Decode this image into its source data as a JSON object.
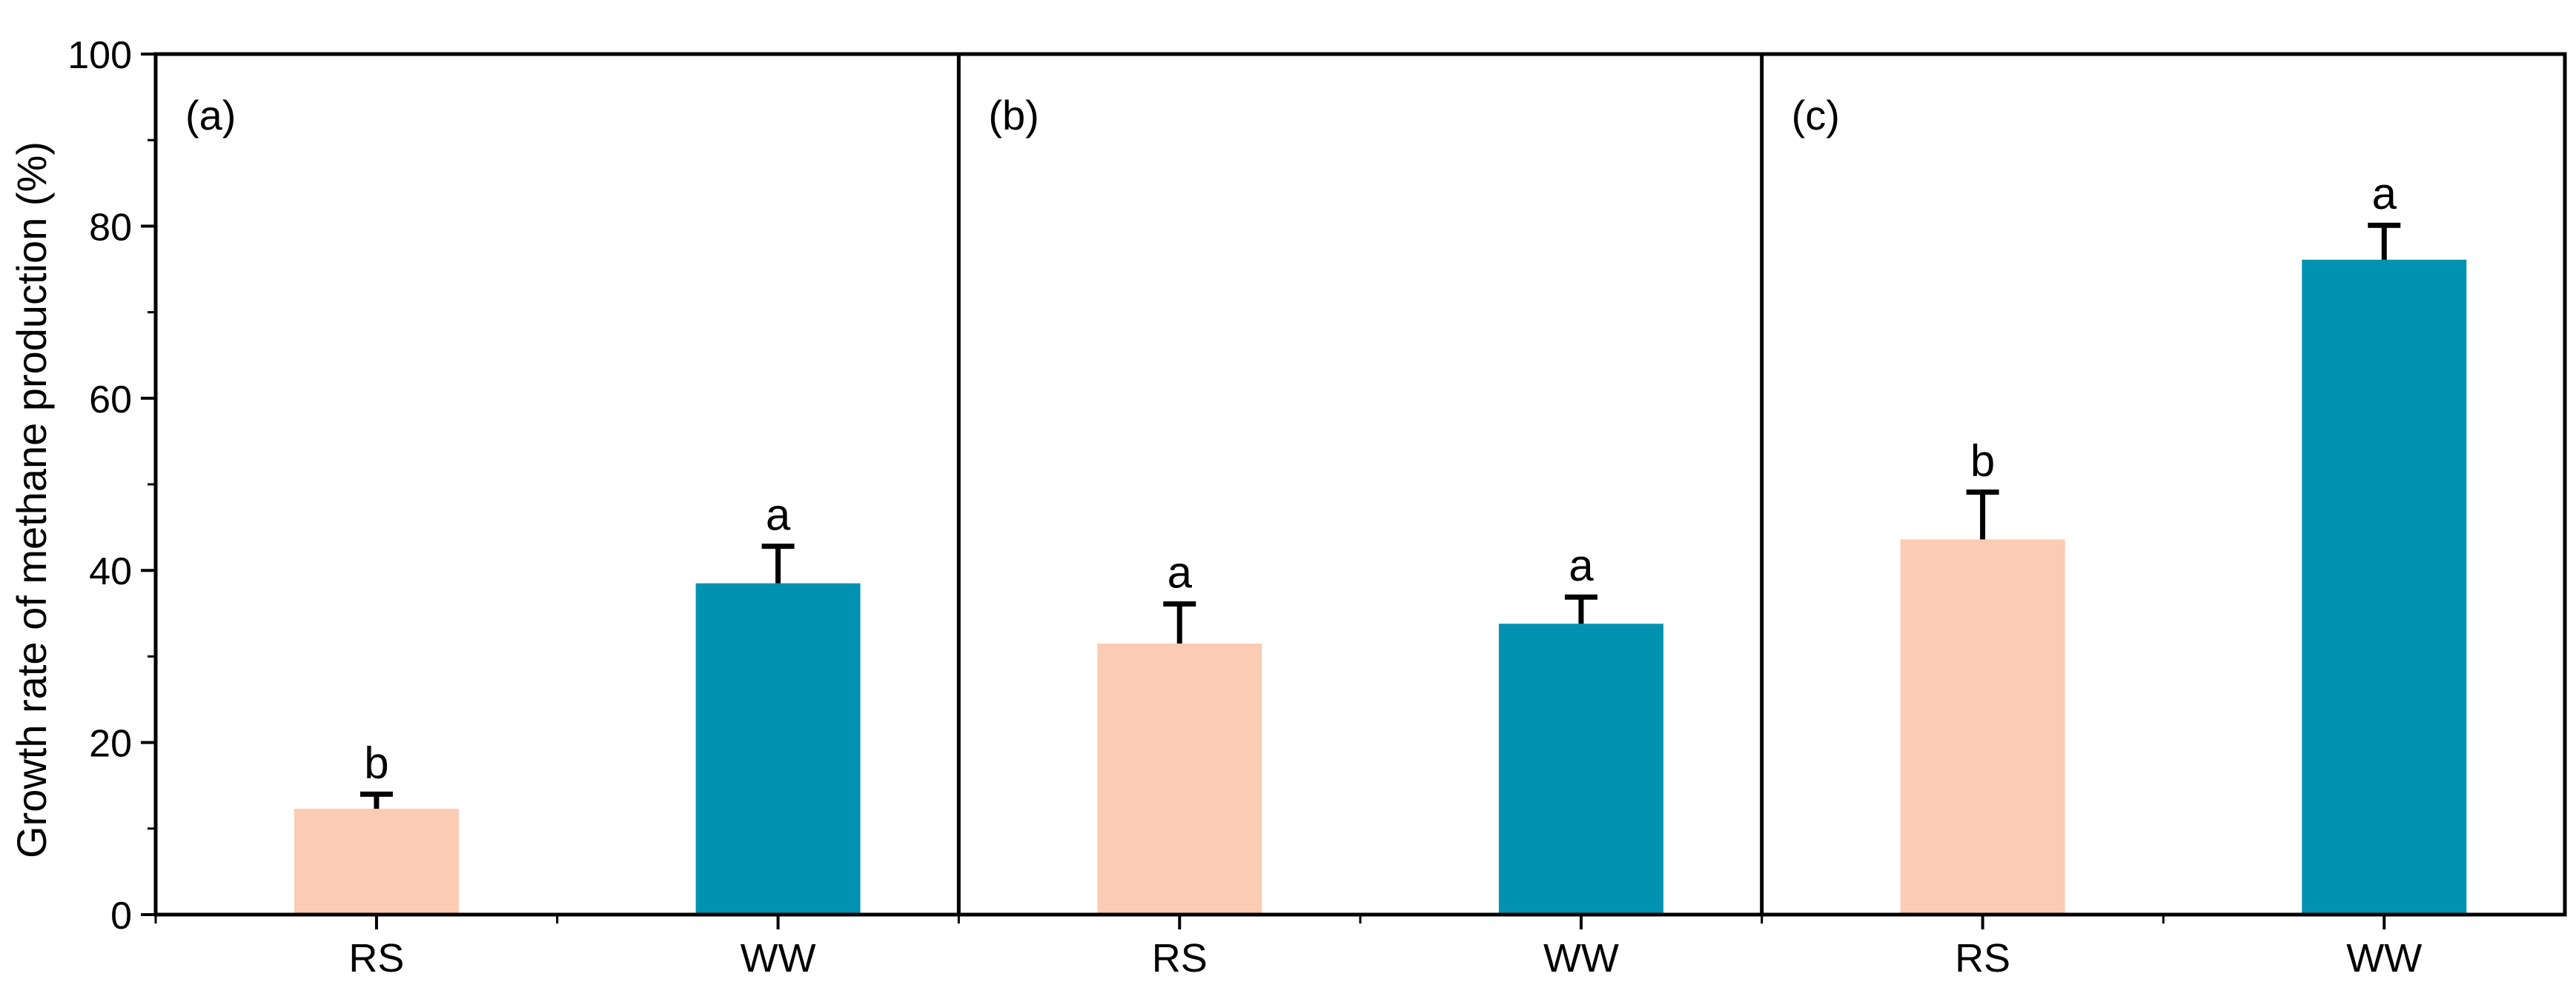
{
  "chart_data": {
    "type": "bar",
    "ylabel": "Growth rate of methane production (%)",
    "ylim": [
      0,
      100
    ],
    "yticks": [
      0,
      20,
      40,
      60,
      80,
      100
    ],
    "colors": {
      "RS": "#FCCBB3",
      "WW": "#0192B2"
    },
    "panels": [
      {
        "label": "(a)",
        "categories": [
          "RS",
          "WW"
        ],
        "values": [
          12.3,
          38.5
        ],
        "errors": [
          1.7,
          4.3
        ],
        "significance": [
          "b",
          "a"
        ]
      },
      {
        "label": "(b)",
        "categories": [
          "RS",
          "WW"
        ],
        "values": [
          31.5,
          33.8
        ],
        "errors": [
          4.6,
          3.1
        ],
        "significance": [
          "a",
          "a"
        ]
      },
      {
        "label": "(c)",
        "categories": [
          "RS",
          "WW"
        ],
        "values": [
          43.6,
          76.1
        ],
        "errors": [
          5.5,
          4.0
        ],
        "significance": [
          "b",
          "a"
        ]
      }
    ]
  }
}
